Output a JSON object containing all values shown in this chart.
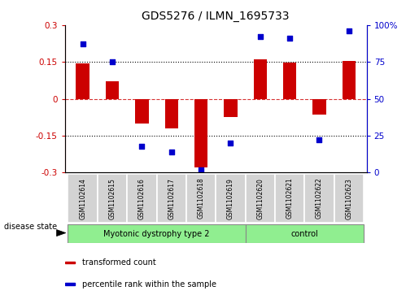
{
  "title": "GDS5276 / ILMN_1695733",
  "samples": [
    "GSM1102614",
    "GSM1102615",
    "GSM1102616",
    "GSM1102617",
    "GSM1102618",
    "GSM1102619",
    "GSM1102620",
    "GSM1102621",
    "GSM1102622",
    "GSM1102623"
  ],
  "red_bars": [
    0.145,
    0.07,
    -0.1,
    -0.12,
    -0.28,
    -0.075,
    0.16,
    0.148,
    -0.065,
    0.155
  ],
  "blue_dots_pct": [
    87,
    75,
    18,
    14,
    2,
    20,
    92,
    91,
    22,
    96
  ],
  "ylim_left": [
    -0.3,
    0.3
  ],
  "ylim_right": [
    0,
    100
  ],
  "yticks_left": [
    -0.3,
    -0.15,
    0.0,
    0.15,
    0.3
  ],
  "yticks_right": [
    0,
    25,
    50,
    75,
    100
  ],
  "hlines_dotted": [
    0.15,
    -0.15
  ],
  "hline_dashed": 0.0,
  "bar_color": "#cc0000",
  "dot_color": "#0000cc",
  "group1_label": "Myotonic dystrophy type 2",
  "group1_count": 6,
  "group2_label": "control",
  "group2_count": 4,
  "group_color": "#90ee90",
  "cell_color": "#d3d3d3",
  "cell_edge_color": "#ffffff",
  "tick_color_left": "#cc0000",
  "tick_color_right": "#0000cc",
  "legend_red_label": "transformed count",
  "legend_blue_label": "percentile rank within the sample",
  "disease_state_label": "disease state",
  "bg_color": "#ffffff",
  "bar_width": 0.45,
  "dot_size": 18
}
